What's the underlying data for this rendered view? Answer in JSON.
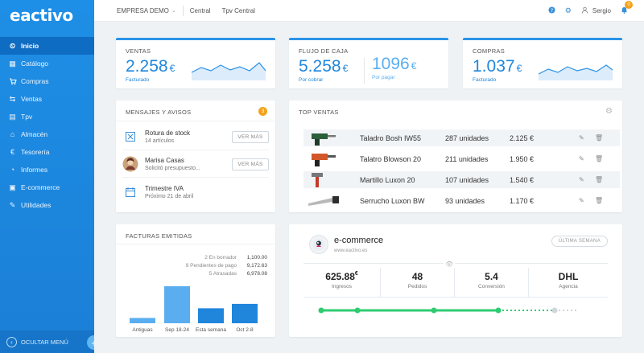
{
  "brand": "eactivo",
  "sidebar": {
    "items": [
      {
        "label": "Inicio",
        "icon": "dashboard-icon",
        "glyph": "⏲"
      },
      {
        "label": "Catálogo",
        "icon": "catalog-icon",
        "glyph": "▦"
      },
      {
        "label": "Compras",
        "icon": "cart-icon",
        "glyph": "🛒"
      },
      {
        "label": "Ventas",
        "icon": "sales-icon",
        "glyph": "⇆"
      },
      {
        "label": "Tpv",
        "icon": "pos-icon",
        "glyph": "▤"
      },
      {
        "label": "Almacén",
        "icon": "warehouse-icon",
        "glyph": "⌂"
      },
      {
        "label": "Tesorería",
        "icon": "euro-icon",
        "glyph": "€"
      },
      {
        "label": "Informes",
        "icon": "chart-icon",
        "glyph": "◔"
      },
      {
        "label": "E-commerce",
        "icon": "ecommerce-icon",
        "glyph": "▣"
      },
      {
        "label": "Utilidades",
        "icon": "wrench-icon",
        "glyph": "✎"
      }
    ],
    "footer_label": "OCULTAR MENÚ"
  },
  "topbar": {
    "company": "EMPRESA DEMO",
    "links": [
      "Central",
      "Tpv Central"
    ],
    "user": "Sergio",
    "notifications": "0"
  },
  "kpis": {
    "ventas": {
      "label": "VENTAS",
      "value": "2.258",
      "currency": "€",
      "sub": "Facturado"
    },
    "flujo": {
      "label": "FLUJO DE CAJA",
      "value": "5.258",
      "currency": "€",
      "sub": "Por cobrar",
      "value2": "1096",
      "currency2": "€",
      "sub2": "Por pagar"
    },
    "compras": {
      "label": "COMPRAS",
      "value": "1.037",
      "currency": "€",
      "sub": "Facturado"
    }
  },
  "mensajes": {
    "title": "MENSAJES Y AVISOS",
    "count": "3",
    "items": [
      {
        "title": "Rotura de stock",
        "sub": "14 artículos",
        "button": "VER MÁS"
      },
      {
        "title": "Marisa Casas",
        "sub": "Solicitó presupuesto...",
        "button": "VER MÁS"
      },
      {
        "title": "Trimestre IVA",
        "sub": "Próximo 21 de abril"
      }
    ]
  },
  "top_ventas": {
    "title": "TOP VENTAS",
    "rows": [
      {
        "name": "Taladro Bosh IW55",
        "units": "287 unidades",
        "price": "2.125 €"
      },
      {
        "name": "Talatro Blowson 20",
        "units": "211 unidades",
        "price": "1.950 €"
      },
      {
        "name": "Martillo Luxon 20",
        "units": "107 unidades",
        "price": "1.540 €"
      },
      {
        "name": "Serrucho Luxon BW",
        "units": "93 unidades",
        "price": "1.170 €"
      }
    ]
  },
  "facturas": {
    "title": "FACTURAS EMITIDAS",
    "legend": [
      {
        "label": "2 En borrador",
        "value": "1,100.00"
      },
      {
        "label": "9 Pendientes de pago",
        "value": "9,172.63"
      },
      {
        "label": "5 Atrasadas",
        "value": "6,978.08"
      }
    ]
  },
  "chart_data": {
    "type": "bar",
    "categories": [
      "Antiguas",
      "Sep 18-24",
      "Esta semana",
      "Oct 2-8"
    ],
    "values": [
      6,
      42,
      17,
      22
    ],
    "colors": [
      "#5aaef0",
      "#5aaef0",
      "#1f86dc",
      "#1f86dc"
    ],
    "title": "FACTURAS EMITIDAS",
    "xlabel": "",
    "ylabel": ""
  },
  "ecommerce": {
    "title": "e-commerce",
    "url": "www.eactivo.es",
    "period": "ÚLTIMA SEMANA",
    "stats": [
      {
        "value": "625.88",
        "sup": "€",
        "label": "Ingresos"
      },
      {
        "value": "48",
        "sup": "",
        "label": "Pedidos"
      },
      {
        "value": "5.4",
        "sup": "",
        "label": "Conversión"
      },
      {
        "value": "DHL",
        "sup": "",
        "label": "Agencia"
      }
    ]
  },
  "colors": {
    "accent": "#1f86dc",
    "sidebar": "#1e8fe6",
    "green": "#2ecc71",
    "badge": "#f4a21c"
  }
}
